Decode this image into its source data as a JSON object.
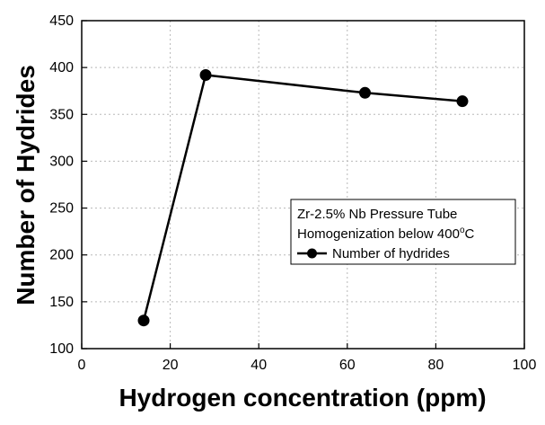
{
  "chart_data": {
    "type": "line",
    "xlabel": "Hydrogen concentration (ppm)",
    "ylabel": "Number of Hydrides",
    "xlim": [
      0,
      100
    ],
    "ylim": [
      100,
      450
    ],
    "x_ticks": [
      0,
      20,
      40,
      60,
      80,
      100
    ],
    "y_ticks": [
      100,
      150,
      200,
      250,
      300,
      350,
      400,
      450
    ],
    "x_tick_labels": [
      "0",
      "20",
      "40",
      "60",
      "80",
      "100"
    ],
    "y_tick_labels": [
      "100",
      "150",
      "200",
      "250",
      "300",
      "350",
      "400",
      "450"
    ],
    "grid": true,
    "legend_position": "right",
    "legend_lines": [
      "Zr-2.5% Nb Pressure Tube",
      "Homogenization below 400",
      "C"
    ],
    "legend_superscript": "o",
    "series": [
      {
        "name": "Number of hydrides",
        "x": [
          14,
          28,
          64,
          86
        ],
        "y": [
          130,
          392,
          373,
          364
        ],
        "color": "#000000",
        "marker": "circle"
      }
    ]
  }
}
